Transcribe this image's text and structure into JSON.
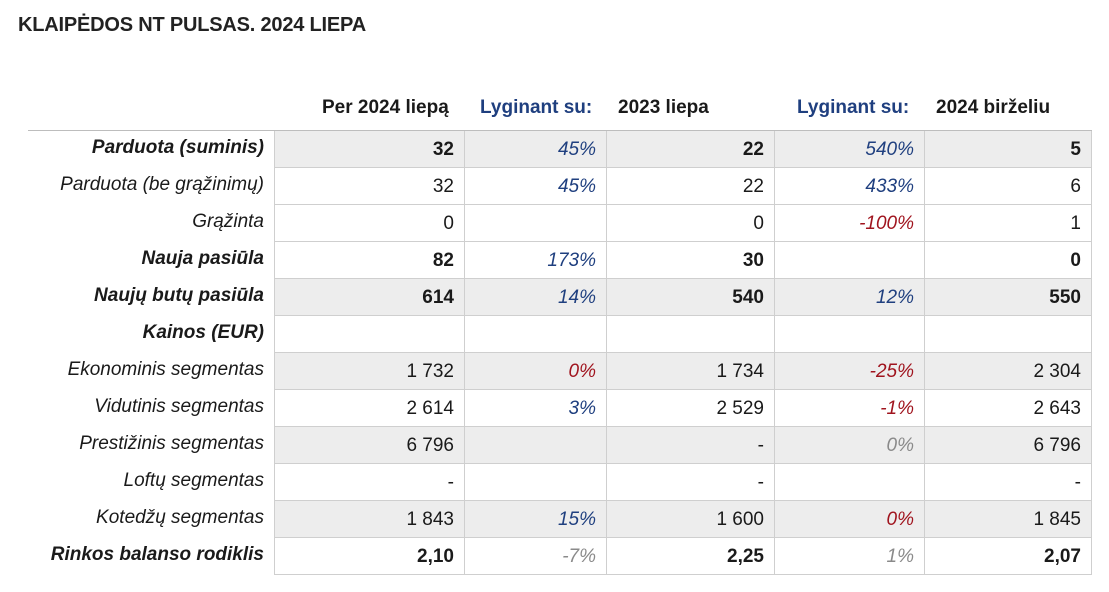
{
  "title": "KLAIPĖDOS NT PULSAS. 2024 LIEPA",
  "colors": {
    "text": "#1a1a1a",
    "header_blue": "#1f3f7f",
    "positive_blue": "#1f3f7f",
    "negative_red": "#a0141e",
    "neutral_gray": "#8a8a8a",
    "shaded_row": "#ededed"
  },
  "headers": [
    "Per 2024 liepą",
    "Lyginant su:",
    "2023 liepa",
    "Lyginant su:",
    "2024 birželiu"
  ],
  "rows": [
    {
      "label": "Parduota (suminis)",
      "bold": true,
      "shaded": true,
      "values": [
        "32",
        "45%",
        "22",
        "540%",
        "5"
      ],
      "tones": [
        "",
        "pos",
        "",
        "pos",
        ""
      ]
    },
    {
      "label": "Parduota (be grąžinimų)",
      "bold": false,
      "shaded": false,
      "values": [
        "32",
        "45%",
        "22",
        "433%",
        "6"
      ],
      "tones": [
        "",
        "pos",
        "",
        "pos",
        ""
      ]
    },
    {
      "label": "Grąžinta",
      "bold": false,
      "shaded": false,
      "values": [
        "0",
        "",
        "0",
        "-100%",
        "1"
      ],
      "tones": [
        "",
        "",
        "",
        "neg",
        ""
      ]
    },
    {
      "label": "Nauja pasiūla",
      "bold": true,
      "shaded": false,
      "values": [
        "82",
        "173%",
        "30",
        "",
        "0"
      ],
      "tones": [
        "",
        "pos",
        "",
        "",
        ""
      ]
    },
    {
      "label": "Naujų butų pasiūla",
      "bold": true,
      "shaded": true,
      "values": [
        "614",
        "14%",
        "540",
        "12%",
        "550"
      ],
      "tones": [
        "",
        "pos",
        "",
        "pos",
        ""
      ]
    },
    {
      "label": "Kainos (EUR)",
      "bold": true,
      "shaded": false,
      "values": [
        "",
        "",
        "",
        "",
        ""
      ],
      "tones": [
        "",
        "",
        "",
        "",
        ""
      ]
    },
    {
      "label": "Ekonominis segmentas",
      "bold": false,
      "shaded": true,
      "values": [
        "1 732",
        "0%",
        "1 734",
        "-25%",
        "2 304"
      ],
      "tones": [
        "",
        "neg",
        "",
        "neg",
        ""
      ]
    },
    {
      "label": "Vidutinis segmentas",
      "bold": false,
      "shaded": false,
      "values": [
        "2 614",
        "3%",
        "2 529",
        "-1%",
        "2 643"
      ],
      "tones": [
        "",
        "pos",
        "",
        "neg",
        ""
      ]
    },
    {
      "label": "Prestižinis segmentas",
      "bold": false,
      "shaded": true,
      "values": [
        "6 796",
        "",
        "-",
        "0%",
        "6 796"
      ],
      "tones": [
        "",
        "",
        "",
        "neu",
        ""
      ]
    },
    {
      "label": "Loftų segmentas",
      "bold": false,
      "shaded": false,
      "values": [
        "-",
        "",
        "-",
        "",
        "-"
      ],
      "tones": [
        "",
        "",
        "",
        "",
        ""
      ]
    },
    {
      "label": "Kotedžų segmentas",
      "bold": false,
      "shaded": true,
      "values": [
        "1 843",
        "15%",
        "1 600",
        "0%",
        "1 845"
      ],
      "tones": [
        "",
        "pos",
        "",
        "neg",
        ""
      ]
    },
    {
      "label": "Rinkos balanso rodiklis",
      "bold": true,
      "shaded": false,
      "values": [
        "2,10",
        "-7%",
        "2,25",
        "1%",
        "2,07"
      ],
      "tones": [
        "",
        "neu",
        "",
        "neu",
        ""
      ]
    }
  ]
}
